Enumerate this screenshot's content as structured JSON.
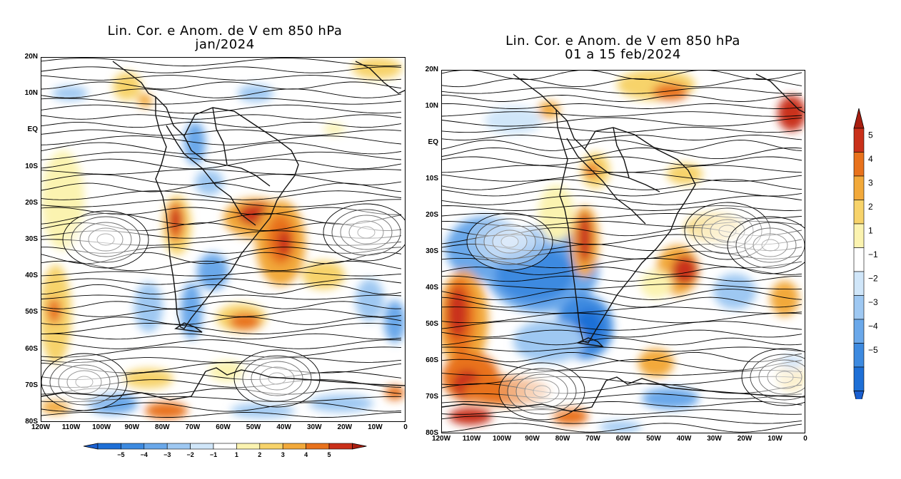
{
  "maps": [
    {
      "title_line1": "Lin. Cor. e Anom. de V em 850 hPa",
      "title_line2": "jan/2024",
      "lat_labels": [
        "20N",
        "10N",
        "EQ",
        "10S",
        "20S",
        "30S",
        "40S",
        "50S",
        "60S",
        "70S",
        "80S"
      ],
      "lon_labels": [
        "120W",
        "110W",
        "100W",
        "90W",
        "80W",
        "70W",
        "60W",
        "50W",
        "40W",
        "30W",
        "20W",
        "10W",
        "0"
      ]
    },
    {
      "title_line1": "Lin. Cor. e Anom. de V em 850 hPa",
      "title_line2": "01 a 15 feb/2024",
      "lat_labels": [
        "20N",
        "10N",
        "EQ",
        "10S",
        "20S",
        "30S",
        "40S",
        "50S",
        "60S",
        "70S",
        "80S"
      ],
      "lon_labels": [
        "120W",
        "110W",
        "100W",
        "90W",
        "80W",
        "70W",
        "60W",
        "50W",
        "40W",
        "30W",
        "20W",
        "10W",
        "0"
      ]
    }
  ],
  "colorbar_horizontal": {
    "labels": [
      "−5",
      "−4",
      "−3",
      "−2",
      "−1",
      "1",
      "2",
      "3",
      "4",
      "5"
    ]
  },
  "colorbar_vertical": {
    "labels": [
      "5",
      "4",
      "3",
      "2",
      "1",
      "−1",
      "−2",
      "−3",
      "−4",
      "−5"
    ]
  },
  "colors": {
    "neg5": "#1e6fd6",
    "neg4": "#3d8ae0",
    "neg3": "#6aa8ea",
    "neg2": "#9ec8f2",
    "neg1": "#d0e6f9",
    "zero": "#ffffff",
    "pos1": "#fbf3b0",
    "pos2": "#f7d36a",
    "pos3": "#f2a93a",
    "pos4": "#e8721c",
    "pos5": "#c9301a",
    "tip_neg": "#1a5fd0",
    "tip_pos": "#a81e10"
  }
}
